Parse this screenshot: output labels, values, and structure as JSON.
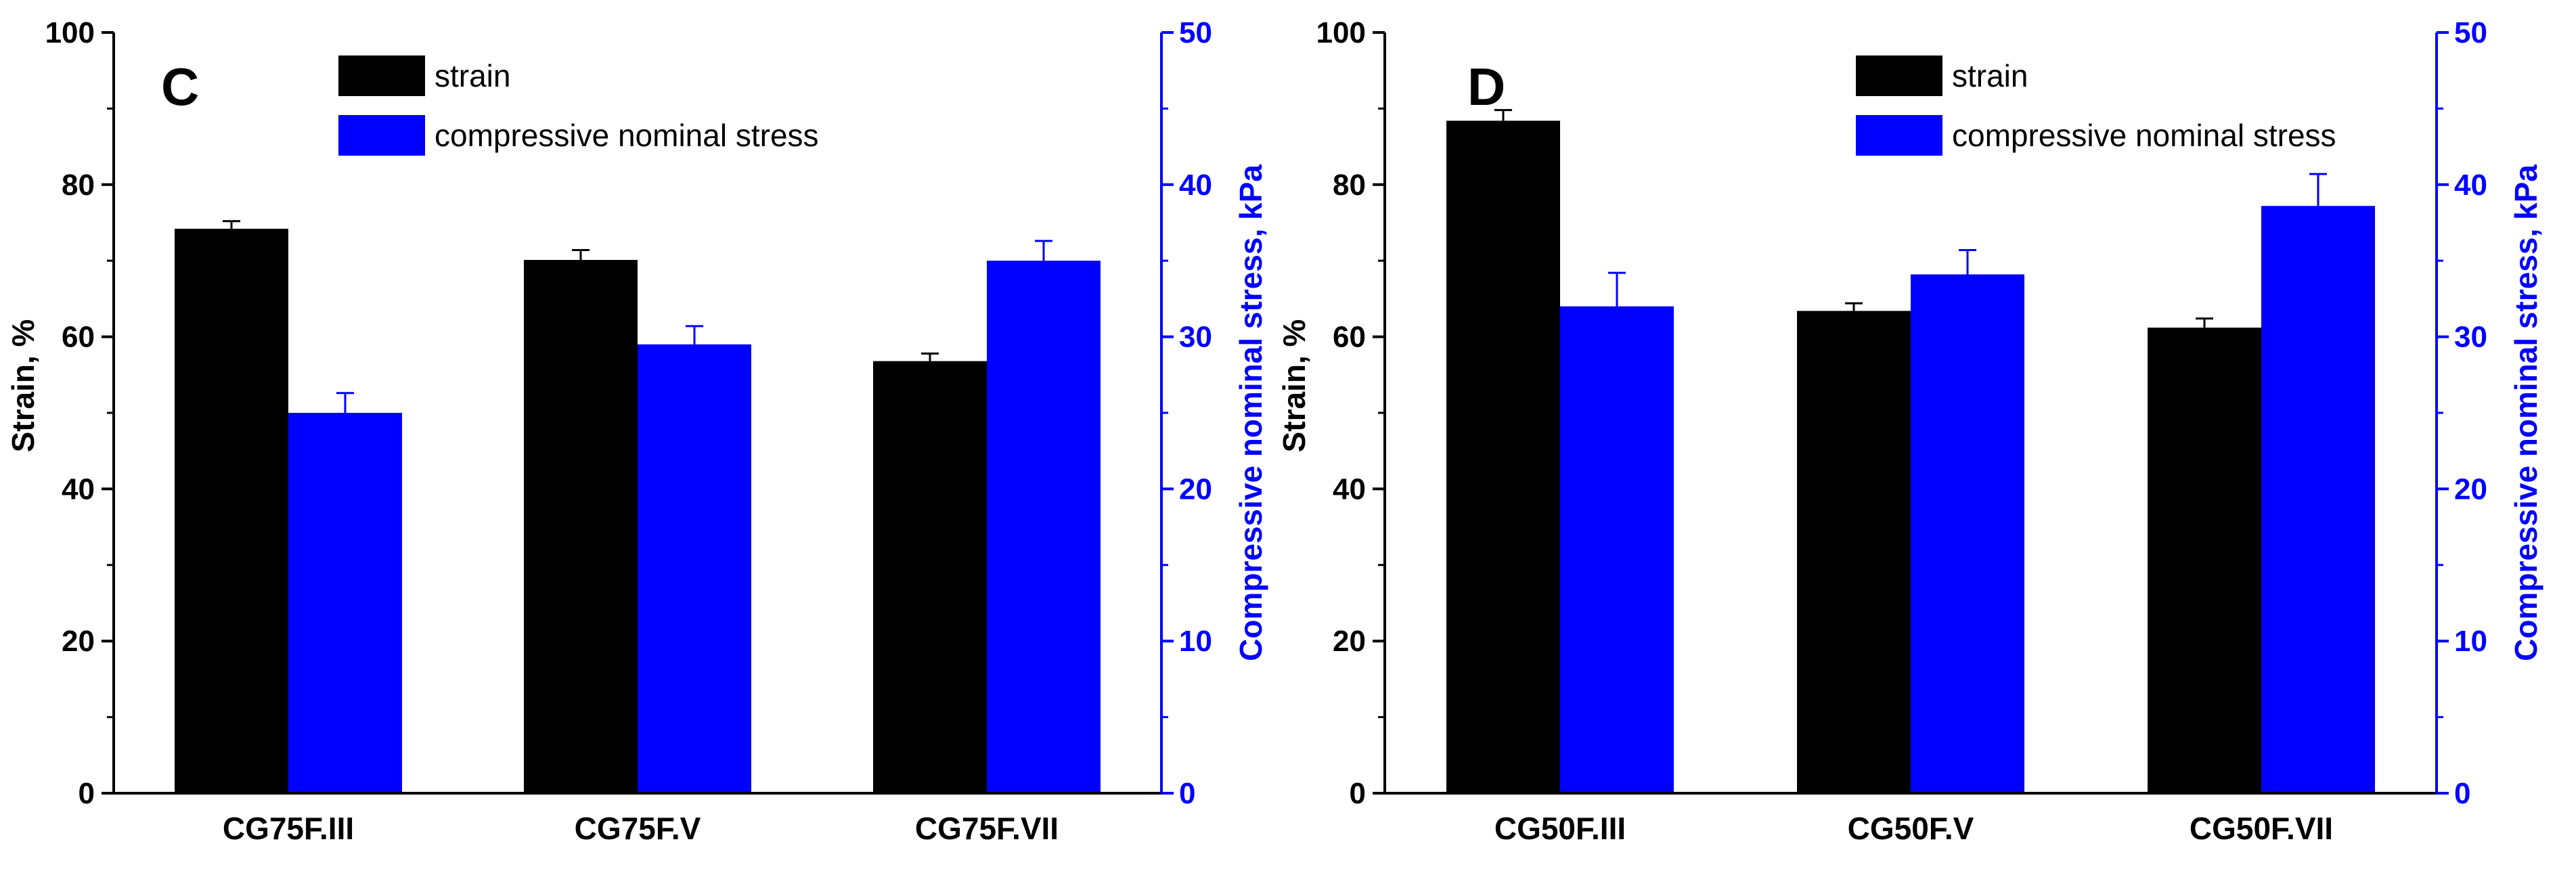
{
  "colors": {
    "strain": "#000000",
    "stress": "#0000ff",
    "axis": "#000000",
    "right_axis": "#0000ff"
  },
  "chart_data": [
    {
      "type": "bar",
      "panel": "C",
      "categories": [
        "CG75F.III",
        "CG75F.V",
        "CG75F.VII"
      ],
      "series": [
        {
          "name": "strain",
          "axis": "left",
          "values": [
            74.2,
            70.1,
            56.8
          ],
          "errors": [
            1.0,
            1.3,
            1.0
          ]
        },
        {
          "name": "compressive nominal stress",
          "axis": "right",
          "values": [
            25.0,
            29.5,
            35.0
          ],
          "errors": [
            1.3,
            1.2,
            1.3
          ]
        }
      ],
      "ylabel": "Strain, %",
      "y2label": "Compressive nominal stress, kPa",
      "ylim": [
        0,
        100
      ],
      "y2lim": [
        0,
        50
      ],
      "yticks": [
        0,
        20,
        40,
        60,
        80,
        100
      ],
      "y2ticks": [
        0,
        10,
        20,
        30,
        40,
        50
      ],
      "legend": [
        "strain",
        "compressive nominal stress"
      ]
    },
    {
      "type": "bar",
      "panel": "D",
      "categories": [
        "CG50F.III",
        "CG50F.V",
        "CG50F.VII"
      ],
      "series": [
        {
          "name": "strain",
          "axis": "left",
          "values": [
            88.4,
            63.4,
            61.2
          ],
          "errors": [
            1.4,
            1.0,
            1.2
          ]
        },
        {
          "name": "compressive nominal stress",
          "axis": "right",
          "values": [
            32.0,
            34.1,
            38.6
          ],
          "errors": [
            2.2,
            1.6,
            2.1
          ]
        }
      ],
      "ylabel": "Strain, %",
      "y2label": "Compressive nominal stress, kPa",
      "ylim": [
        0,
        100
      ],
      "y2lim": [
        0,
        50
      ],
      "yticks": [
        0,
        20,
        40,
        60,
        80,
        100
      ],
      "y2ticks": [
        0,
        10,
        20,
        30,
        40,
        50
      ],
      "legend": [
        "strain",
        "compressive nominal stress"
      ]
    }
  ]
}
